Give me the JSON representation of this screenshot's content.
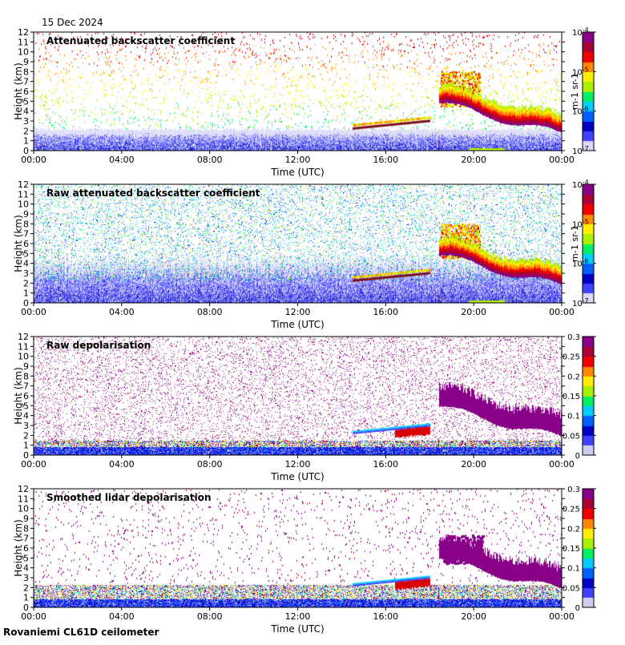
{
  "header": {
    "date": "15 Dec 2024"
  },
  "footer": {
    "site": "Rovaniemi CL61D ceilometer"
  },
  "colors": {
    "colormap": [
      "#d8d8f6",
      "#4040ff",
      "#0000c0",
      "#0060ff",
      "#00ccff",
      "#00ee66",
      "#aaee00",
      "#ffee00",
      "#ff8800",
      "#ee0000",
      "#aa0033",
      "#880088"
    ],
    "layer_mark": "#7a0f1a",
    "liquid_layer": "#d80000"
  },
  "chart_data": [
    {
      "type": "heatmap",
      "title": "Attenuated backscatter coefficient",
      "xlabel": "Time (UTC)",
      "ylabel": "Height (km)",
      "x_ticks": [
        "00:00",
        "04:00",
        "08:00",
        "12:00",
        "16:00",
        "20:00",
        "00:00"
      ],
      "xlim_hours": [
        0,
        24
      ],
      "y_ticks": [
        0,
        1,
        2,
        3,
        4,
        5,
        6,
        7,
        8,
        9,
        10,
        11,
        12
      ],
      "ylim": [
        0,
        12
      ],
      "colorbar": {
        "scale": "log",
        "ticks": [
          "10-7",
          "10-6",
          "10-5",
          "10-4"
        ],
        "range": [
          1e-07,
          0.0001
        ],
        "label": "m-1 sr-1"
      },
      "noise_level": "low"
    },
    {
      "type": "heatmap",
      "title": "Raw attenuated backscatter coefficient",
      "xlabel": "Time (UTC)",
      "ylabel": "Height (km)",
      "x_ticks": [
        "00:00",
        "04:00",
        "08:00",
        "12:00",
        "16:00",
        "20:00",
        "00:00"
      ],
      "xlim_hours": [
        0,
        24
      ],
      "y_ticks": [
        0,
        1,
        2,
        3,
        4,
        5,
        6,
        7,
        8,
        9,
        10,
        11,
        12
      ],
      "ylim": [
        0,
        12
      ],
      "colorbar": {
        "scale": "log",
        "ticks": [
          "10-7",
          "10-6",
          "10-5",
          "10-4"
        ],
        "range": [
          1e-07,
          0.0001
        ],
        "label": "m-1 sr-1"
      },
      "noise_level": "high"
    },
    {
      "type": "heatmap",
      "title": "Raw depolarisation",
      "xlabel": "Time (UTC)",
      "ylabel": "Height (km)",
      "x_ticks": [
        "00:00",
        "04:00",
        "08:00",
        "12:00",
        "16:00",
        "20:00",
        "00:00"
      ],
      "xlim_hours": [
        0,
        24
      ],
      "y_ticks": [
        0,
        1,
        2,
        3,
        4,
        5,
        6,
        7,
        8,
        9,
        10,
        11,
        12
      ],
      "ylim": [
        0,
        12
      ],
      "colorbar": {
        "scale": "linear",
        "ticks": [
          "0",
          "0.05",
          "0.1",
          "0.15",
          "0.2",
          "0.25",
          "0.3"
        ],
        "range": [
          0,
          0.3
        ],
        "label": ""
      },
      "noise_level": "very high"
    },
    {
      "type": "heatmap",
      "title": "Smoothed lidar depolarisation",
      "xlabel": "Time (UTC)",
      "ylabel": "Height (km)",
      "x_ticks": [
        "00:00",
        "04:00",
        "08:00",
        "12:00",
        "16:00",
        "20:00",
        "00:00"
      ],
      "xlim_hours": [
        0,
        24
      ],
      "y_ticks": [
        0,
        1,
        2,
        3,
        4,
        5,
        6,
        7,
        8,
        9,
        10,
        11,
        12
      ],
      "ylim": [
        0,
        12
      ],
      "colorbar": {
        "scale": "linear",
        "ticks": [
          "0",
          "0.05",
          "0.1",
          "0.15",
          "0.2",
          "0.25",
          "0.3"
        ],
        "range": [
          0,
          0.3
        ],
        "label": ""
      },
      "noise_level": "low"
    }
  ]
}
